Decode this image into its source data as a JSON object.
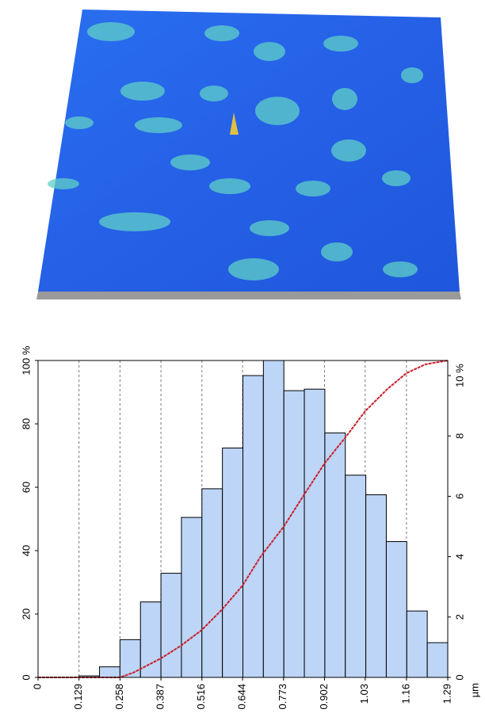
{
  "chart_data": {
    "type": "histogram",
    "bins": [
      0,
      0.0645,
      0.129,
      0.1935,
      0.258,
      0.3225,
      0.387,
      0.4515,
      0.516,
      0.5805,
      0.645,
      0.7095,
      0.774,
      0.8385,
      0.903,
      0.9675,
      1.032,
      1.0965,
      1.161,
      1.2255,
      1.29
    ],
    "counts": [
      0,
      0,
      0.05,
      0.35,
      1.25,
      2.5,
      3.45,
      5.3,
      6.25,
      7.6,
      10.0,
      10.5,
      9.5,
      9.55,
      8.1,
      6.7,
      6.05,
      4.5,
      2.2,
      1.15
    ],
    "color": "#bdd5f7",
    "axis": "y2",
    "line": {
      "type": "line",
      "color": "#c8202c",
      "x": [
        0,
        0.129,
        0.258,
        0.3,
        0.387,
        0.45,
        0.516,
        0.58,
        0.644,
        0.7,
        0.773,
        0.84,
        0.902,
        0.97,
        1.03,
        1.1,
        1.16,
        1.22,
        1.29
      ],
      "values": [
        0,
        0,
        0,
        1.5,
        6,
        10,
        15,
        21.5,
        29,
        38,
        47.5,
        58,
        67.5,
        76,
        84,
        91,
        96,
        98.8,
        100
      ]
    },
    "xlim": [
      0,
      1.29
    ],
    "xticks": [
      0,
      0.129,
      0.258,
      0.387,
      0.516,
      0.644,
      0.773,
      0.902,
      1.03,
      1.16,
      1.29
    ],
    "xlabel": "µm",
    "ylim": [
      0,
      100
    ],
    "yticks": [
      0,
      20,
      40,
      60,
      80,
      {
        "value": 100,
        "label": "100 %"
      }
    ],
    "y2lim": [
      0,
      10.5
    ],
    "y2ticks": [
      0,
      2,
      4,
      6,
      8,
      {
        "value": 10,
        "label": "10 %"
      }
    ],
    "grid": true
  }
}
